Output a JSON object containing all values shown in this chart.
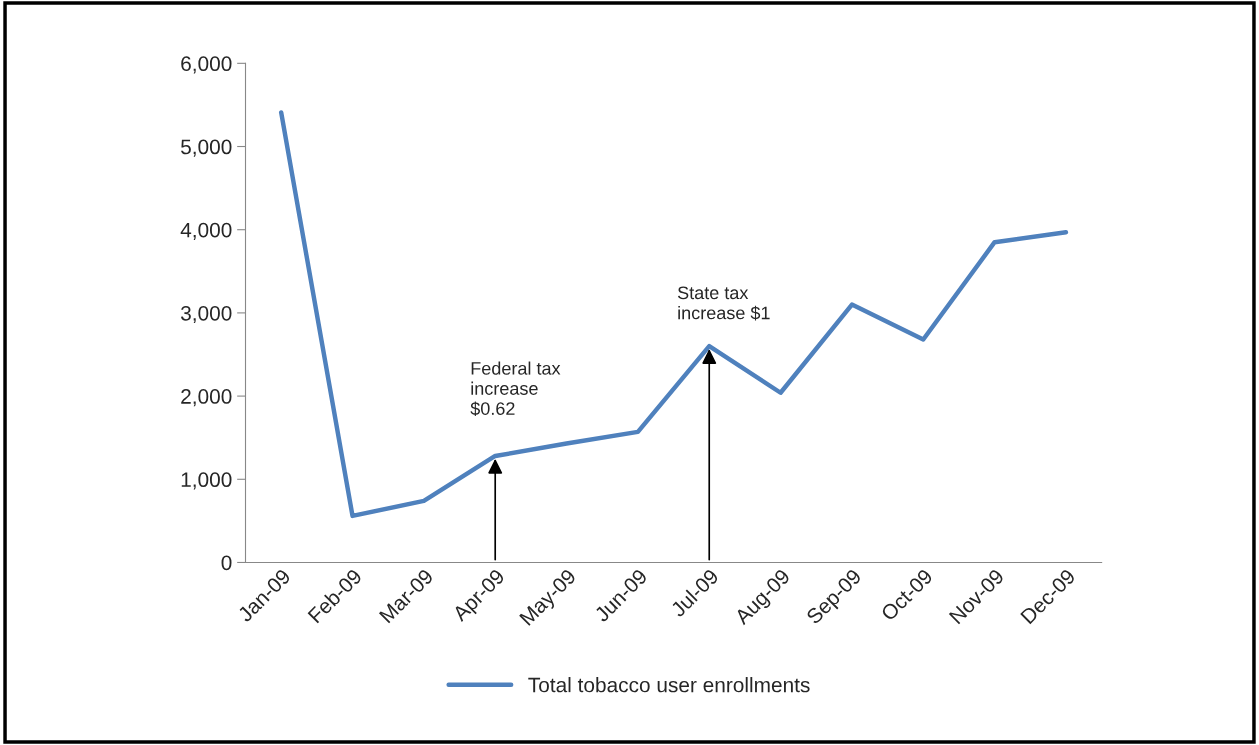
{
  "chart_data": {
    "type": "line",
    "categories": [
      "Jan-09",
      "Feb-09",
      "Mar-09",
      "Apr-09",
      "May-09",
      "Jun-09",
      "Jul-09",
      "Aug-09",
      "Sep-09",
      "Oct-09",
      "Nov-09",
      "Dec-09"
    ],
    "series": [
      {
        "name": "Total tobacco user enrollments",
        "color": "#4f81bd",
        "values": [
          5410,
          560,
          740,
          1280,
          1430,
          1570,
          2600,
          2040,
          3100,
          2680,
          3850,
          3970
        ]
      }
    ],
    "ylim": [
      0,
      6000
    ],
    "yticks": [
      {
        "value": 0,
        "label": "0"
      },
      {
        "value": 1000,
        "label": "1,000"
      },
      {
        "value": 2000,
        "label": "2,000"
      },
      {
        "value": 3000,
        "label": "3,000"
      },
      {
        "value": 4000,
        "label": "4,000"
      },
      {
        "value": 5000,
        "label": "5,000"
      },
      {
        "value": 6000,
        "label": "6,000"
      }
    ],
    "annotations": [
      {
        "text": "Federal tax\nincrease\n$0.62",
        "x": "Apr-09",
        "y": 1280
      },
      {
        "text": "State tax\nincrease $1",
        "x": "Jul-09",
        "y": 2600
      }
    ],
    "grid": false,
    "legend": "bottom",
    "marker": "none",
    "line_style": "solid"
  }
}
